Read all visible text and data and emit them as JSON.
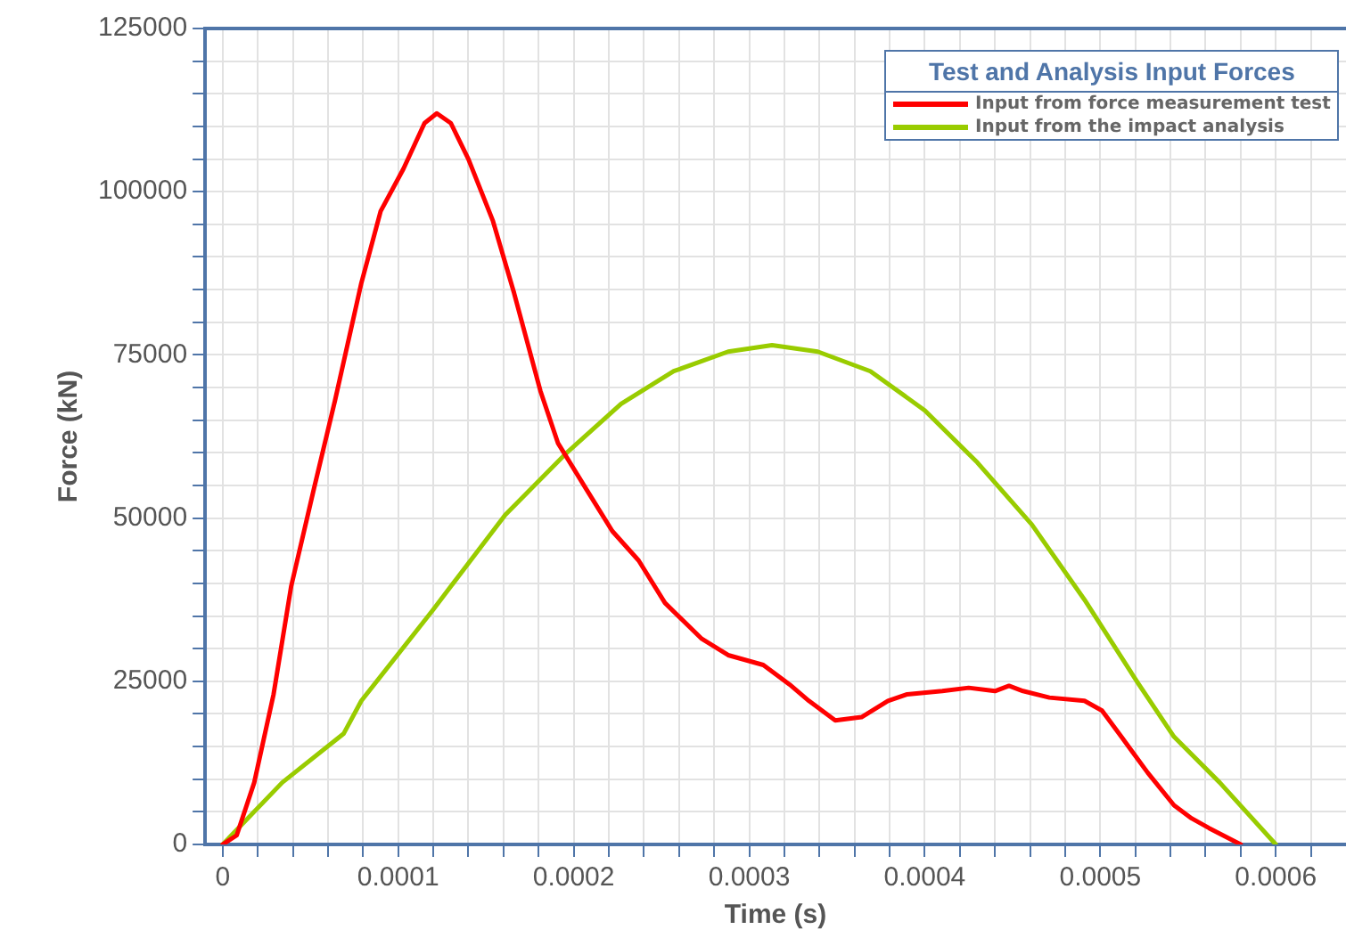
{
  "chart_data": {
    "type": "line",
    "xlabel": "Time (s)",
    "ylabel": "Force (kN)",
    "legend_title": "Test and Analysis Input Forces",
    "legend": "top right",
    "grid": true,
    "marker": "none",
    "line_style": "solid",
    "xlim": [
      -1e-05,
      0.00064
    ],
    "ylim": [
      0,
      125000
    ],
    "xticks": [
      0,
      {
        "value": 2e-05,
        "label": null
      },
      {
        "value": 4e-05,
        "label": null
      },
      {
        "value": 6e-05,
        "label": null
      },
      {
        "value": 8e-05,
        "label": null
      },
      0.0001,
      {
        "value": 0.00012,
        "label": null
      },
      {
        "value": 0.00014,
        "label": null
      },
      {
        "value": 0.00016,
        "label": null
      },
      {
        "value": 0.00018,
        "label": null
      },
      0.0002,
      {
        "value": 0.00022,
        "label": null
      },
      {
        "value": 0.00024,
        "label": null
      },
      {
        "value": 0.00026,
        "label": null
      },
      {
        "value": 0.00028,
        "label": null
      },
      0.0003,
      {
        "value": 0.00032,
        "label": null
      },
      {
        "value": 0.00034,
        "label": null
      },
      {
        "value": 0.00036,
        "label": null
      },
      {
        "value": 0.00038,
        "label": null
      },
      0.0004,
      {
        "value": 0.00042,
        "label": null
      },
      {
        "value": 0.00044,
        "label": null
      },
      {
        "value": 0.00046,
        "label": null
      },
      {
        "value": 0.00048,
        "label": null
      },
      0.0005,
      {
        "value": 0.00052,
        "label": null
      },
      {
        "value": 0.00054,
        "label": null
      },
      {
        "value": 0.00056,
        "label": null
      },
      {
        "value": 0.00058,
        "label": null
      },
      0.0006,
      {
        "value": 0.00062,
        "label": null
      }
    ],
    "yticks": [
      0,
      {
        "value": 5000,
        "label": null
      },
      {
        "value": 10000,
        "label": null
      },
      {
        "value": 15000,
        "label": null
      },
      {
        "value": 20000,
        "label": null
      },
      25000,
      {
        "value": 30000,
        "label": null
      },
      {
        "value": 35000,
        "label": null
      },
      {
        "value": 40000,
        "label": null
      },
      {
        "value": 45000,
        "label": null
      },
      50000,
      {
        "value": 55000,
        "label": null
      },
      {
        "value": 60000,
        "label": null
      },
      {
        "value": 65000,
        "label": null
      },
      {
        "value": 70000,
        "label": null
      },
      75000,
      {
        "value": 80000,
        "label": null
      },
      {
        "value": 85000,
        "label": null
      },
      {
        "value": 90000,
        "label": null
      },
      {
        "value": 95000,
        "label": null
      },
      100000,
      {
        "value": 105000,
        "label": null
      },
      {
        "value": 110000,
        "label": null
      },
      {
        "value": 115000,
        "label": null
      },
      {
        "value": 120000,
        "label": null
      },
      125000
    ],
    "series": [
      {
        "name": "Input from force measurement test",
        "color": "#ff0000",
        "x": [
          0,
          8e-06,
          1.8e-05,
          2.9e-05,
          3.9e-05,
          5.2e-05,
          6.4e-05,
          7.9e-05,
          9e-05,
          0.000103,
          0.000115,
          0.000122,
          0.00013,
          0.00014,
          0.000154,
          0.000166,
          0.000181,
          0.000191,
          0.000207,
          0.000222,
          0.000237,
          0.000252,
          0.000273,
          0.000288,
          0.000308,
          0.000323,
          0.000334,
          0.000349,
          0.000364,
          0.000379,
          0.00039,
          0.00041,
          0.000425,
          0.00044,
          0.000448,
          0.000456,
          0.000471,
          0.000491,
          0.000501,
          0.000512,
          0.000527,
          0.000542,
          0.000552,
          0.000562,
          0.00058
        ],
        "values": [
          0,
          1400,
          9500,
          23000,
          39500,
          54500,
          68000,
          86000,
          97000,
          103500,
          110500,
          112000,
          110500,
          105000,
          95500,
          84500,
          69500,
          61500,
          54500,
          48000,
          43500,
          37000,
          31500,
          29000,
          27500,
          24500,
          22000,
          19000,
          19500,
          22000,
          23000,
          23500,
          24000,
          23500,
          24300,
          23500,
          22500,
          22000,
          20500,
          16500,
          11000,
          6000,
          4000,
          2500,
          0
        ]
      },
      {
        "name": "Input from the impact analysis",
        "color": "#99cc00",
        "x": [
          0,
          3.4e-05,
          6.9e-05,
          7.9e-05,
          0.00012,
          0.000161,
          0.000196,
          0.000227,
          0.000257,
          0.000288,
          0.000313,
          0.000339,
          0.000369,
          0.0004,
          0.00043,
          0.000461,
          0.000491,
          0.000522,
          0.000542,
          0.000568,
          0.0006
        ],
        "values": [
          0,
          9500,
          17000,
          22000,
          36000,
          50500,
          60000,
          67500,
          72500,
          75500,
          76500,
          75500,
          72500,
          66500,
          58500,
          49000,
          37500,
          24500,
          16500,
          9500,
          0
        ]
      }
    ]
  }
}
